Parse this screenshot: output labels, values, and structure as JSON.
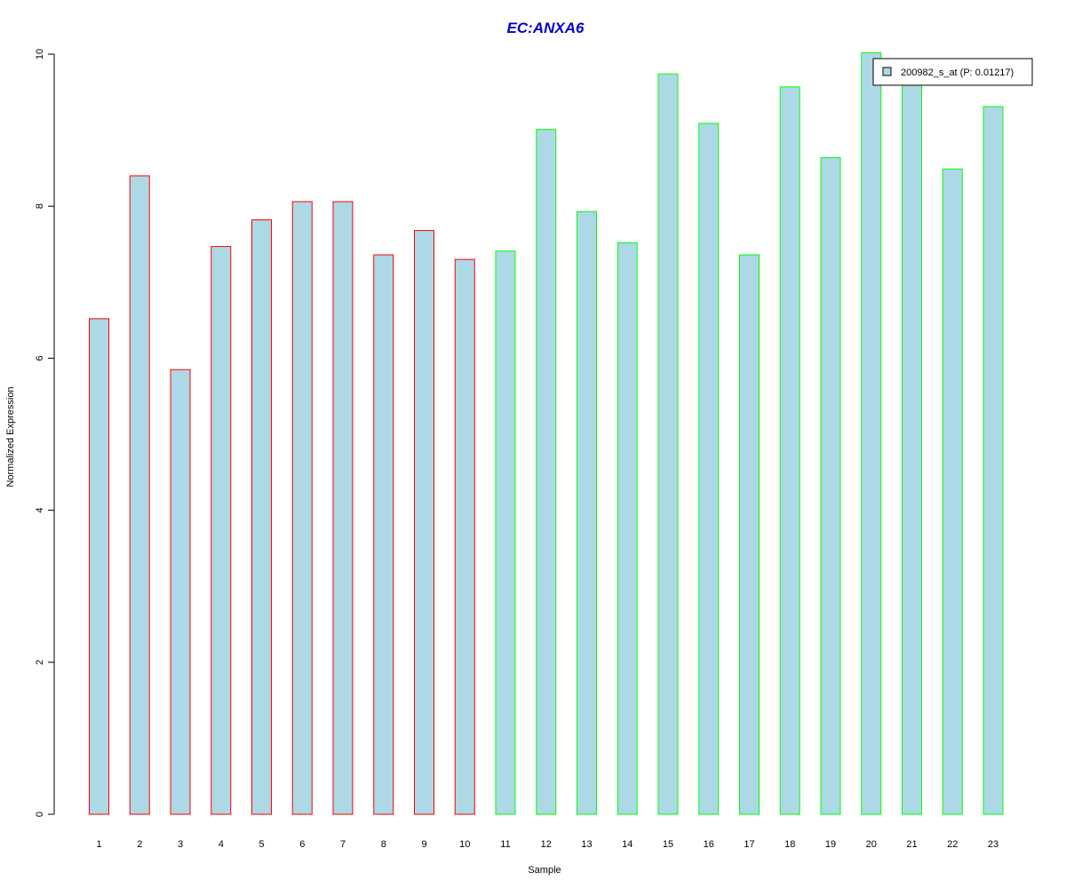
{
  "chart_data": {
    "type": "bar",
    "title": "EC:ANXA6",
    "xlabel": "Sample",
    "ylabel": "Normalized Expression",
    "ylim": [
      0,
      10
    ],
    "yticks": [
      "0",
      "2",
      "4",
      "6",
      "8",
      "10"
    ],
    "categories": [
      "1",
      "2",
      "3",
      "4",
      "5",
      "6",
      "7",
      "8",
      "9",
      "10",
      "11",
      "12",
      "13",
      "14",
      "15",
      "16",
      "17",
      "18",
      "19",
      "20",
      "21",
      "22",
      "23"
    ],
    "series": [
      {
        "name": "200982_s_at (P: 0.01217)",
        "values": [
          6.52,
          8.4,
          5.85,
          7.47,
          7.82,
          8.06,
          8.06,
          7.36,
          7.68,
          7.3,
          7.41,
          9.01,
          7.93,
          7.52,
          9.74,
          9.09,
          7.36,
          9.57,
          8.64,
          10.02,
          9.64,
          8.49,
          9.31
        ],
        "groups": [
          "red",
          "red",
          "red",
          "red",
          "red",
          "red",
          "red",
          "red",
          "red",
          "red",
          "green",
          "green",
          "green",
          "green",
          "green",
          "green",
          "green",
          "green",
          "green",
          "green",
          "green",
          "green",
          "green"
        ]
      }
    ],
    "legend": {
      "position": "top-right",
      "label": "200982_s_at (P: 0.01217)"
    },
    "grid": false,
    "colors": {
      "title": "#0000CC",
      "bar_fill": "#ADD8E6",
      "red_border": "#FF0000",
      "green_border": "#00FF00",
      "axis": "#000000"
    }
  }
}
